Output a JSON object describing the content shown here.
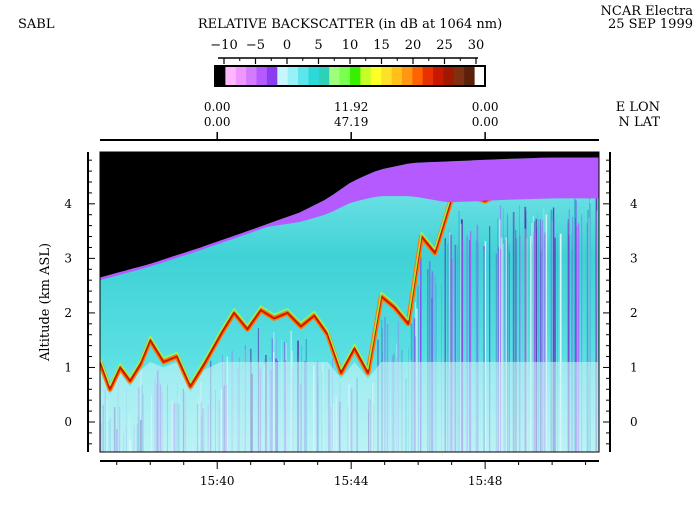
{
  "header": {
    "instrument": "SABL",
    "platform": "NCAR Electra",
    "date": "25 SEP 1999"
  },
  "colorbar": {
    "title": "RELATIVE BACKSCATTER (in dB at 1064 nm)",
    "ticks": [
      "−10",
      "−5",
      "0",
      "5",
      "10",
      "15",
      "20",
      "25",
      "30"
    ],
    "segments": [
      "#000000",
      "#ffb8ff",
      "#f096ff",
      "#d27bff",
      "#b45aff",
      "#8a3cf0",
      "#c8f6ff",
      "#98f0f8",
      "#5ae6ea",
      "#2ed8d8",
      "#2ed0b8",
      "#a0ff7a",
      "#78ff50",
      "#36f000",
      "#c6ff28",
      "#ffff28",
      "#ffe028",
      "#ffc018",
      "#ff9810",
      "#ff6400",
      "#e83000",
      "#c81800",
      "#a01800",
      "#803010",
      "#5a2008",
      "#ffffff"
    ]
  },
  "top_axis": {
    "ticks": [
      {
        "lon": "0.00",
        "lat": "0.00"
      },
      {
        "lon": "11.92",
        "lat": "47.19"
      },
      {
        "lon": "0.00",
        "lat": "0.00"
      }
    ],
    "lon_label": "E  LON",
    "lat_label": "N  LAT"
  },
  "chart_data": {
    "type": "heatmap",
    "title": "RELATIVE BACKSCATTER (in dB at 1064 nm)",
    "xlabel": "",
    "ylabel": "Altitude (km ASL)",
    "x_ticks": [
      "15:40",
      "15:44",
      "15:48"
    ],
    "x_tick_minutes": [
      0,
      4,
      8
    ],
    "xlim_minutes": [
      -3.5,
      11.4
    ],
    "y_ticks": [
      "0",
      "1",
      "2",
      "3",
      "4"
    ],
    "y_tick_values": [
      0,
      1,
      2,
      3,
      4
    ],
    "ylim": [
      -0.55,
      4.95
    ],
    "colorbar_range_db": [
      -10,
      30
    ],
    "cloud_top_km": {
      "minutes": [
        -3.5,
        -2.0,
        -0.5,
        1.0,
        2.5,
        3.3,
        4.0,
        4.8,
        5.8,
        7.0,
        8.5,
        10.0,
        11.4
      ],
      "values": [
        2.65,
        2.9,
        3.2,
        3.52,
        3.85,
        4.1,
        4.4,
        4.62,
        4.75,
        4.78,
        4.82,
        4.85,
        4.85
      ]
    },
    "aerosol_layer_top_km": {
      "minutes": [
        -3.5,
        -3.2,
        -2.9,
        -2.6,
        -2.3,
        -2.0,
        -1.6,
        -1.2,
        -0.8,
        -0.4,
        0.1,
        0.5,
        0.9,
        1.3,
        1.7,
        2.1,
        2.5,
        2.9,
        3.3,
        3.7,
        4.1,
        4.5,
        4.9,
        5.3,
        5.7,
        6.1,
        6.5,
        7.0,
        7.5,
        8.0,
        8.5,
        9.0,
        9.5,
        10.0,
        10.5,
        11.0,
        11.4
      ],
      "values": [
        1.1,
        0.6,
        1.0,
        0.75,
        1.05,
        1.5,
        1.1,
        1.2,
        0.65,
        1.05,
        1.6,
        2.0,
        1.7,
        2.05,
        1.9,
        2.0,
        1.75,
        1.95,
        1.6,
        0.9,
        1.35,
        0.9,
        2.3,
        2.1,
        1.8,
        3.4,
        3.1,
        4.1,
        4.15,
        4.05,
        4.2,
        4.3,
        4.2,
        4.4,
        4.2,
        4.5,
        4.25
      ]
    }
  }
}
